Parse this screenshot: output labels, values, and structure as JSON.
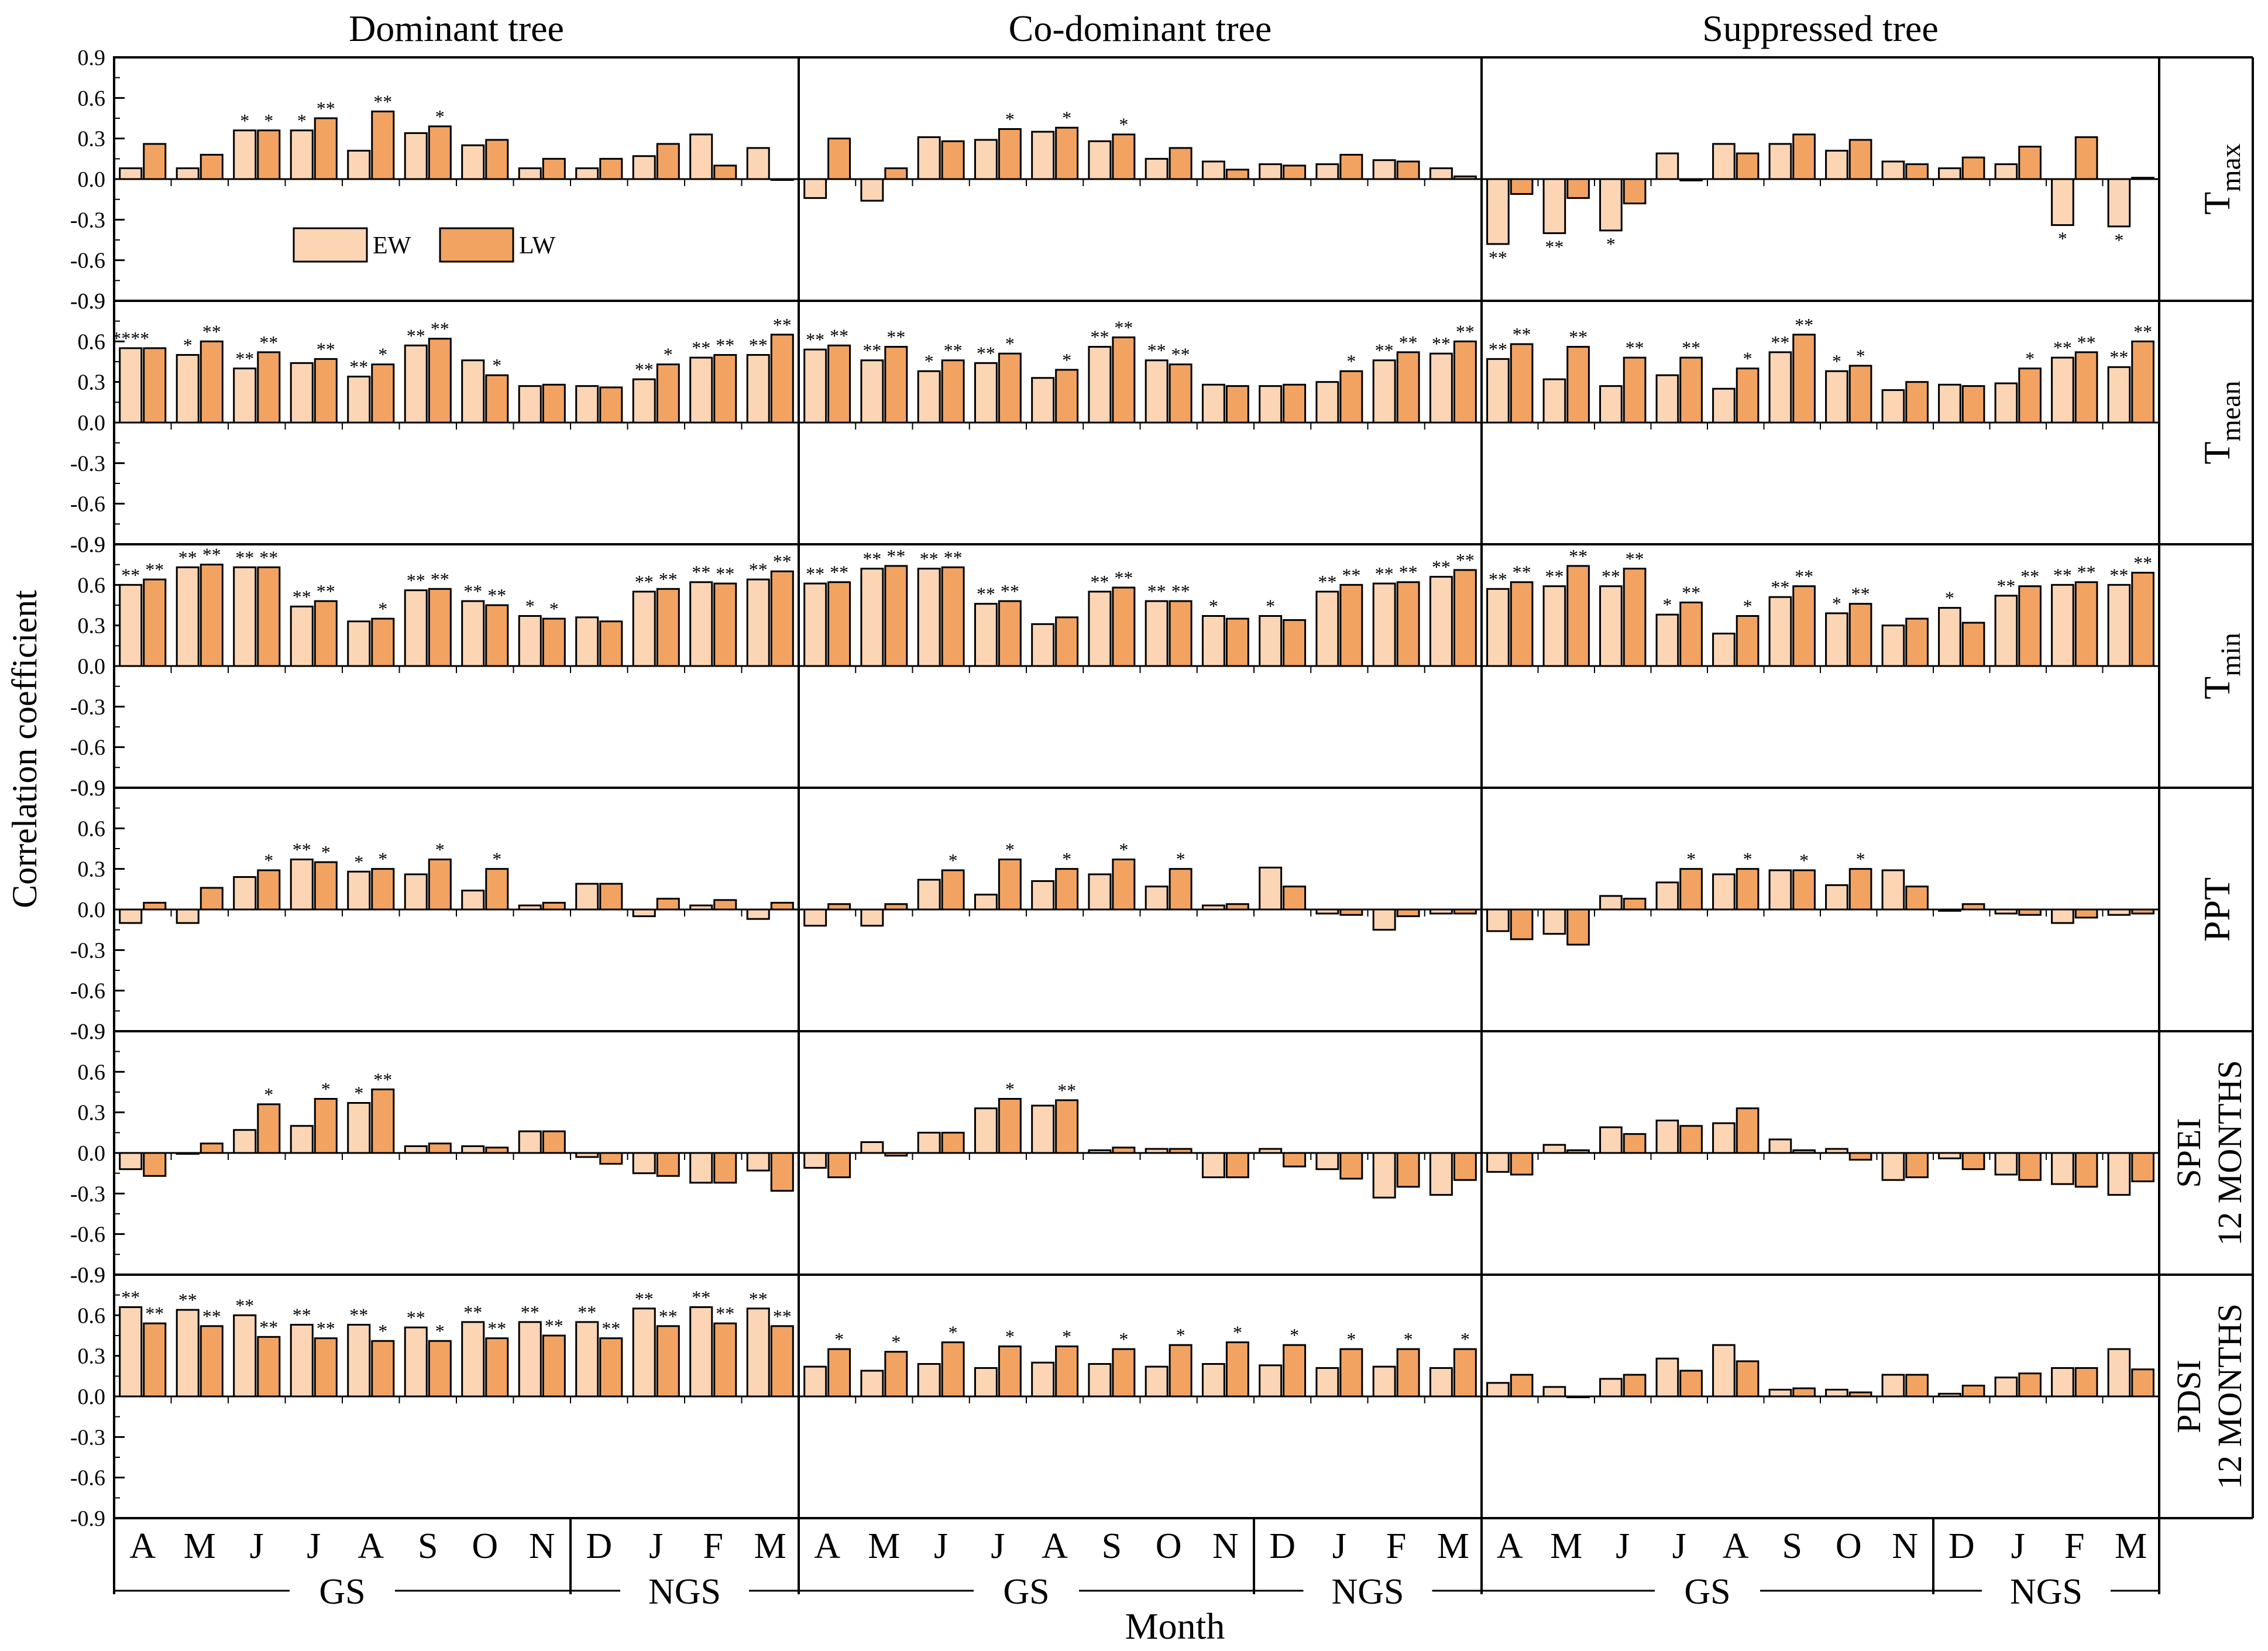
{
  "figure": {
    "y_axis_label": "Correlation coefficient",
    "x_axis_label": "Month",
    "legend": {
      "ew": "EW",
      "lw": "LW"
    },
    "colors": {
      "ew": "#fcd5b5",
      "lw": "#f2a362",
      "stroke": "#000000"
    }
  },
  "chart_data": {
    "type": "bar",
    "ylim": [
      -0.9,
      0.9
    ],
    "yticks": [
      "0.9",
      "0.6",
      "0.3",
      "0.0",
      "-0.3",
      "-0.6",
      "-0.9"
    ],
    "months": [
      "A",
      "M",
      "J",
      "J",
      "A",
      "S",
      "O",
      "N",
      "D",
      "J",
      "F",
      "M"
    ],
    "season_labels": [
      "GS",
      "NGS"
    ],
    "columns": [
      "Dominant tree",
      "Co-dominant tree",
      "Suppressed tree"
    ],
    "rows": [
      {
        "label": "T",
        "sub": "max"
      },
      {
        "label": "T",
        "sub": "mean"
      },
      {
        "label": "T",
        "sub": "min"
      },
      {
        "label": "PPT",
        "sub": ""
      },
      {
        "label": "SPEI",
        "label2": "12 MONTHS"
      },
      {
        "label": "PDSI",
        "label2": "12 MONTHS"
      }
    ],
    "series_names": [
      "EW",
      "LW"
    ],
    "panels": [
      [
        {
          "ew": [
            0.08,
            0.08,
            0.36,
            0.36,
            0.21,
            0.34,
            0.25,
            0.08,
            0.08,
            0.17,
            0.33,
            0.23
          ],
          "lw": [
            0.26,
            0.18,
            0.36,
            0.45,
            0.5,
            0.39,
            0.29,
            0.15,
            0.15,
            0.26,
            0.1,
            0.0
          ],
          "ew_sig": [
            "",
            "",
            "*",
            "*",
            "",
            "",
            "",
            "",
            "",
            "",
            "",
            ""
          ],
          "lw_sig": [
            "",
            "",
            "*",
            "**",
            "**",
            "*",
            "",
            "",
            "",
            "",
            "",
            ""
          ]
        },
        {
          "ew": [
            0.55,
            0.5,
            0.4,
            0.44,
            0.34,
            0.57,
            0.46,
            0.27,
            0.27,
            0.32,
            0.48,
            0.5
          ],
          "lw": [
            0.55,
            0.6,
            0.52,
            0.47,
            0.43,
            0.62,
            0.35,
            0.28,
            0.26,
            0.43,
            0.5,
            0.65
          ],
          "ew_sig": [
            "****",
            "*",
            "**",
            "",
            "**",
            "**",
            "",
            "",
            "",
            "**",
            "**",
            "**"
          ],
          "lw_sig": [
            "",
            "**",
            "**",
            "**",
            "*",
            "**",
            "*",
            "",
            "",
            "*",
            "**",
            "**"
          ]
        },
        {
          "ew": [
            0.6,
            0.73,
            0.73,
            0.44,
            0.33,
            0.56,
            0.48,
            0.37,
            0.36,
            0.55,
            0.62,
            0.64
          ],
          "lw": [
            0.64,
            0.75,
            0.73,
            0.48,
            0.35,
            0.57,
            0.45,
            0.35,
            0.33,
            0.57,
            0.61,
            0.7
          ],
          "ew_sig": [
            "**",
            "**",
            "**",
            "**",
            "",
            "**",
            "**",
            "*",
            "",
            "**",
            "**",
            "**"
          ],
          "lw_sig": [
            "**",
            "**",
            "**",
            "**",
            "*",
            "**",
            "**",
            "*",
            "",
            "**",
            "**",
            "**"
          ]
        },
        {
          "ew": [
            -0.1,
            -0.1,
            0.24,
            0.37,
            0.28,
            0.26,
            0.14,
            0.03,
            0.19,
            -0.05,
            0.03,
            -0.07
          ],
          "lw": [
            0.05,
            0.16,
            0.29,
            0.35,
            0.3,
            0.37,
            0.3,
            0.05,
            0.19,
            0.08,
            0.07,
            0.05
          ],
          "ew_sig": [
            "",
            "",
            "",
            "**",
            "*",
            "",
            "",
            "",
            "",
            "",
            "",
            ""
          ],
          "lw_sig": [
            "",
            "",
            "*",
            "*",
            "*",
            "*",
            "*",
            "",
            "",
            "",
            "",
            ""
          ]
        },
        {
          "ew": [
            -0.12,
            0.0,
            0.17,
            0.2,
            0.37,
            0.05,
            0.05,
            0.16,
            -0.03,
            -0.15,
            -0.22,
            -0.13
          ],
          "lw": [
            -0.17,
            0.07,
            0.36,
            0.4,
            0.47,
            0.07,
            0.04,
            0.16,
            -0.08,
            -0.17,
            -0.22,
            -0.28
          ],
          "ew_sig": [
            "",
            "",
            "",
            "",
            "*",
            "",
            "",
            "",
            "",
            "",
            "",
            ""
          ],
          "lw_sig": [
            "",
            "",
            "*",
            "*",
            "**",
            "",
            "",
            "",
            "",
            "",
            "",
            ""
          ]
        },
        {
          "ew": [
            0.66,
            0.64,
            0.6,
            0.53,
            0.53,
            0.51,
            0.55,
            0.55,
            0.55,
            0.65,
            0.66,
            0.65
          ],
          "lw": [
            0.54,
            0.52,
            0.44,
            0.43,
            0.41,
            0.41,
            0.43,
            0.45,
            0.43,
            0.52,
            0.54,
            0.52
          ],
          "ew_sig": [
            "**",
            "**",
            "**",
            "**",
            "**",
            "**",
            "**",
            "**",
            "**",
            "**",
            "**",
            "**"
          ],
          "lw_sig": [
            "**",
            "**",
            "**",
            "**",
            "*",
            "*",
            "**",
            "**",
            "**",
            "**",
            "**",
            "**"
          ]
        }
      ],
      [
        {
          "ew": [
            -0.14,
            -0.16,
            0.31,
            0.29,
            0.35,
            0.28,
            0.15,
            0.13,
            0.11,
            0.11,
            0.14,
            0.08
          ],
          "lw": [
            0.3,
            0.08,
            0.28,
            0.37,
            0.38,
            0.33,
            0.23,
            0.07,
            0.1,
            0.18,
            0.13,
            0.02
          ],
          "ew_sig": [
            "",
            "",
            "",
            "",
            "",
            "",
            "",
            "",
            "",
            "",
            "",
            ""
          ],
          "lw_sig": [
            "",
            "",
            "",
            "*",
            "*",
            "*",
            "",
            "",
            "",
            "",
            "",
            ""
          ]
        },
        {
          "ew": [
            0.54,
            0.46,
            0.38,
            0.44,
            0.33,
            0.56,
            0.46,
            0.28,
            0.27,
            0.3,
            0.46,
            0.51
          ],
          "lw": [
            0.57,
            0.56,
            0.46,
            0.51,
            0.39,
            0.63,
            0.43,
            0.27,
            0.28,
            0.38,
            0.52,
            0.6
          ],
          "ew_sig": [
            "**",
            "**",
            "*",
            "**",
            "",
            "**",
            "**",
            "",
            "",
            "",
            "**",
            "**"
          ],
          "lw_sig": [
            "**",
            "**",
            "**",
            "*",
            "*",
            "**",
            "**",
            "",
            "",
            "*",
            "**",
            "**"
          ]
        },
        {
          "ew": [
            0.61,
            0.72,
            0.72,
            0.46,
            0.31,
            0.55,
            0.48,
            0.37,
            0.37,
            0.55,
            0.61,
            0.66
          ],
          "lw": [
            0.62,
            0.74,
            0.73,
            0.48,
            0.36,
            0.58,
            0.48,
            0.35,
            0.34,
            0.6,
            0.62,
            0.71
          ],
          "ew_sig": [
            "**",
            "**",
            "**",
            "**",
            "",
            "**",
            "**",
            "*",
            "*",
            "**",
            "**",
            "**"
          ],
          "lw_sig": [
            "**",
            "**",
            "**",
            "**",
            "",
            "**",
            "**",
            "",
            "",
            "**",
            "**",
            "**"
          ]
        },
        {
          "ew": [
            -0.12,
            -0.12,
            0.22,
            0.11,
            0.21,
            0.26,
            0.17,
            0.03,
            0.31,
            -0.03,
            -0.15,
            -0.03
          ],
          "lw": [
            0.04,
            0.04,
            0.29,
            0.37,
            0.3,
            0.37,
            0.3,
            0.04,
            0.17,
            -0.04,
            -0.05,
            -0.03
          ],
          "ew_sig": [
            "",
            "",
            "",
            "",
            "",
            "",
            "",
            "",
            "",
            "",
            "",
            ""
          ],
          "lw_sig": [
            "",
            "",
            "*",
            "*",
            "*",
            "*",
            "*",
            "",
            "",
            "",
            "",
            ""
          ]
        },
        {
          "ew": [
            -0.11,
            0.08,
            0.15,
            0.33,
            0.35,
            0.02,
            0.03,
            -0.18,
            0.03,
            -0.12,
            -0.33,
            -0.31
          ],
          "lw": [
            -0.18,
            -0.02,
            0.15,
            0.4,
            0.39,
            0.04,
            0.03,
            -0.18,
            -0.1,
            -0.19,
            -0.25,
            -0.2
          ],
          "ew_sig": [
            "",
            "",
            "",
            "",
            "",
            "",
            "",
            "",
            "",
            "",
            "",
            ""
          ],
          "lw_sig": [
            "",
            "",
            "",
            "*",
            "**",
            "",
            "",
            "",
            "",
            "",
            "",
            ""
          ]
        },
        {
          "ew": [
            0.22,
            0.19,
            0.24,
            0.21,
            0.25,
            0.24,
            0.22,
            0.24,
            0.23,
            0.21,
            0.22,
            0.21
          ],
          "lw": [
            0.35,
            0.33,
            0.4,
            0.37,
            0.37,
            0.35,
            0.38,
            0.4,
            0.38,
            0.35,
            0.35,
            0.35
          ],
          "ew_sig": [
            "",
            "",
            "",
            "",
            "",
            "",
            "",
            "",
            "",
            "",
            "",
            ""
          ],
          "lw_sig": [
            "*",
            "*",
            "*",
            "*",
            "*",
            "*",
            "*",
            "*",
            "*",
            "*",
            "*",
            "*"
          ]
        }
      ],
      [
        {
          "ew": [
            -0.48,
            -0.4,
            -0.38,
            0.19,
            0.26,
            0.26,
            0.21,
            0.13,
            0.08,
            0.11,
            -0.34,
            -0.35
          ],
          "lw": [
            -0.11,
            -0.14,
            -0.18,
            -0.01,
            0.19,
            0.33,
            0.29,
            0.11,
            0.16,
            0.24,
            0.31,
            0.01
          ],
          "ew_sig": [
            "**",
            "**",
            "*",
            "",
            "",
            "",
            "",
            "",
            "",
            "",
            "*",
            "*"
          ],
          "lw_sig": [
            "",
            "",
            "",
            "",
            "",
            "",
            "",
            "",
            "",
            "",
            "",
            ""
          ]
        },
        {
          "ew": [
            0.47,
            0.32,
            0.27,
            0.35,
            0.25,
            0.52,
            0.38,
            0.24,
            0.28,
            0.29,
            0.48,
            0.41
          ],
          "lw": [
            0.58,
            0.56,
            0.48,
            0.48,
            0.4,
            0.65,
            0.42,
            0.3,
            0.27,
            0.4,
            0.52,
            0.6
          ],
          "ew_sig": [
            "**",
            "",
            "",
            "",
            "",
            "**",
            "*",
            "",
            "",
            "",
            "**",
            "**"
          ],
          "lw_sig": [
            "**",
            "**",
            "**",
            "**",
            "*",
            "**",
            "*",
            "",
            "",
            "*",
            "**",
            "**"
          ]
        },
        {
          "ew": [
            0.57,
            0.59,
            0.59,
            0.38,
            0.24,
            0.51,
            0.39,
            0.3,
            0.43,
            0.52,
            0.6,
            0.6
          ],
          "lw": [
            0.62,
            0.74,
            0.72,
            0.47,
            0.37,
            0.59,
            0.46,
            0.35,
            0.32,
            0.59,
            0.62,
            0.69
          ],
          "ew_sig": [
            "**",
            "**",
            "**",
            "*",
            "",
            "**",
            "*",
            "",
            "*",
            "**",
            "**",
            "**"
          ],
          "lw_sig": [
            "**",
            "**",
            "**",
            "**",
            "*",
            "**",
            "**",
            "",
            "",
            "**",
            "**",
            "**"
          ]
        },
        {
          "ew": [
            -0.16,
            -0.18,
            0.1,
            0.2,
            0.26,
            0.29,
            0.18,
            0.29,
            -0.01,
            -0.03,
            -0.1,
            -0.04
          ],
          "lw": [
            -0.22,
            -0.26,
            0.08,
            0.3,
            0.3,
            0.29,
            0.3,
            0.17,
            0.04,
            -0.04,
            -0.06,
            -0.03
          ],
          "ew_sig": [
            "",
            "",
            "",
            "",
            "",
            "",
            "",
            "",
            "",
            "",
            "",
            ""
          ],
          "lw_sig": [
            "",
            "",
            "",
            "*",
            "*",
            "*",
            "*",
            "",
            "",
            "",
            "",
            ""
          ]
        },
        {
          "ew": [
            -0.14,
            0.06,
            0.19,
            0.24,
            0.22,
            0.1,
            0.03,
            -0.2,
            -0.04,
            -0.16,
            -0.23,
            -0.31
          ],
          "lw": [
            -0.16,
            0.02,
            0.14,
            0.2,
            0.33,
            0.02,
            -0.05,
            -0.18,
            -0.12,
            -0.2,
            -0.25,
            -0.21
          ],
          "ew_sig": [
            "",
            "",
            "",
            "",
            "",
            "",
            "",
            "",
            "",
            "",
            "",
            ""
          ],
          "lw_sig": [
            "",
            "",
            "",
            "",
            "",
            "",
            "",
            "",
            "",
            "",
            "",
            ""
          ]
        },
        {
          "ew": [
            0.1,
            0.07,
            0.13,
            0.28,
            0.38,
            0.05,
            0.05,
            0.16,
            0.02,
            0.14,
            0.21,
            0.35
          ],
          "lw": [
            0.16,
            0.0,
            0.16,
            0.19,
            0.26,
            0.06,
            0.03,
            0.16,
            0.08,
            0.17,
            0.21,
            0.2
          ],
          "ew_sig": [
            "",
            "",
            "",
            "",
            "",
            "",
            "",
            "",
            "",
            "",
            "",
            ""
          ],
          "lw_sig": [
            "",
            "",
            "",
            "",
            "",
            "",
            "",
            "",
            "",
            "",
            "",
            ""
          ]
        }
      ]
    ]
  }
}
